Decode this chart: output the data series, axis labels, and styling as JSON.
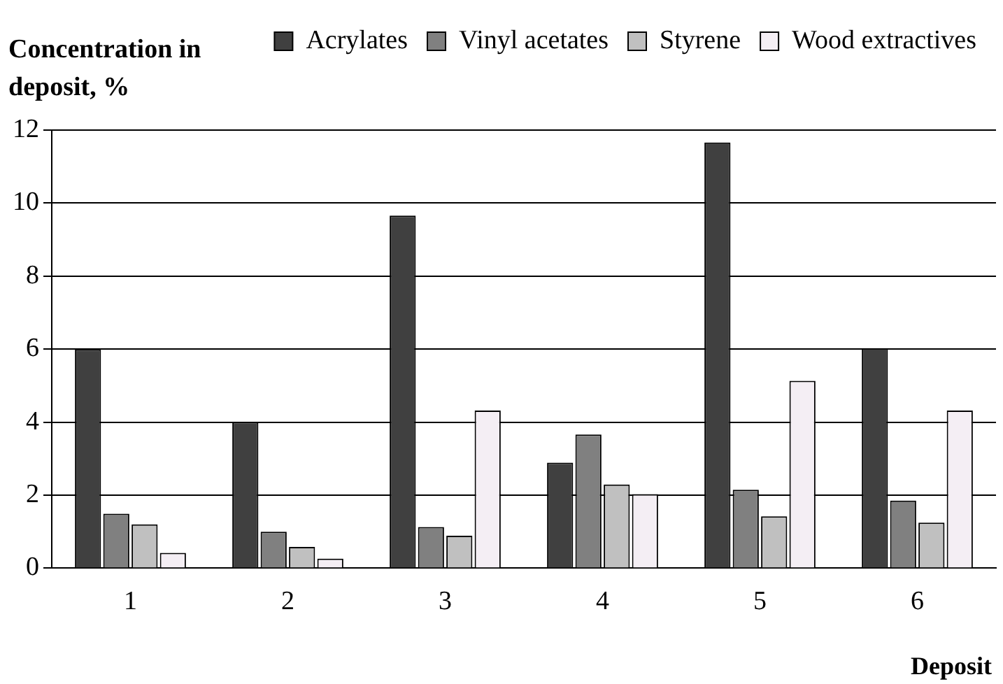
{
  "chart_data": {
    "type": "bar",
    "ylabel": "Concentration in deposit, %",
    "xlabel": "Deposit",
    "categories": [
      "1",
      "2",
      "3",
      "4",
      "5",
      "6"
    ],
    "series": [
      {
        "name": "Acrylates",
        "color": "#404040",
        "values": [
          6.0,
          4.0,
          9.66,
          2.89,
          11.66,
          6.03
        ]
      },
      {
        "name": "Vinyl acetates",
        "color": "#808080",
        "values": [
          1.49,
          1.0,
          1.13,
          3.66,
          2.15,
          1.85
        ]
      },
      {
        "name": "Styrene",
        "color": "#c0c0c0",
        "values": [
          1.2,
          0.58,
          0.89,
          2.29,
          1.42,
          1.25
        ]
      },
      {
        "name": "Wood extractives",
        "color": "#f4eef4",
        "values": [
          0.42,
          0.26,
          4.32,
          2.03,
          5.13,
          4.32
        ]
      }
    ],
    "ylim": [
      0,
      12
    ],
    "yticks": [
      0,
      2,
      4,
      6,
      8,
      10,
      12
    ],
    "grid": "y",
    "legend": "top right"
  }
}
